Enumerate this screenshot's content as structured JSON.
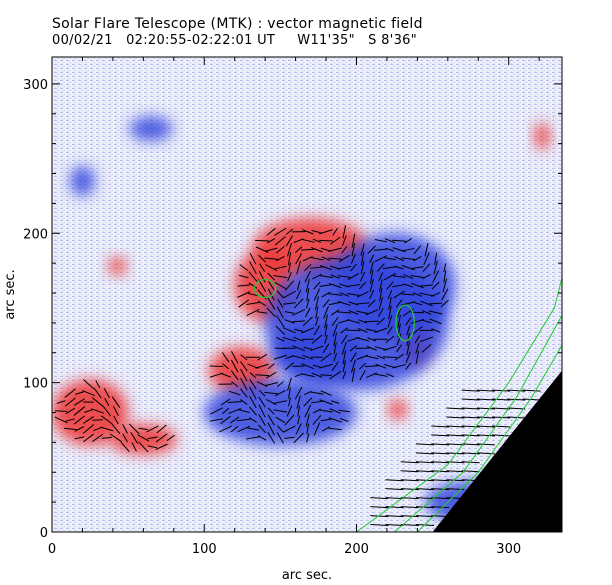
{
  "header": {
    "title": "Solar Flare Telescope (MTK) : vector magnetic field",
    "obs_line": "00/02/21   02:20:55-02:22:01 UT     W11'35\"   S 8'36\""
  },
  "chart_data": {
    "type": "heatmap",
    "title": "Solar Flare Telescope (MTK) : vector magnetic field",
    "subtitle": "00/02/21   02:20:55-02:22:01 UT     W11'35\"   S 8'36\"",
    "xlabel": "arc sec.",
    "ylabel": "arc sec.",
    "xlim": [
      0,
      335
    ],
    "ylim": [
      0,
      318
    ],
    "x_ticks": [
      0,
      100,
      200,
      300
    ],
    "y_ticks": [
      0,
      100,
      200,
      300
    ],
    "colors": {
      "positive_polarity": "#ee3333",
      "negative_polarity": "#3344dd",
      "neutral_noise": "#c8cdf0",
      "contour": "#22cc33",
      "limb_fill": "#000000",
      "vectors": "#000000"
    },
    "regions": [
      {
        "polarity": "positive",
        "center": [
          170,
          190
        ],
        "radii": [
          38,
          20
        ]
      },
      {
        "polarity": "positive",
        "center": [
          140,
          165
        ],
        "radii": [
          20,
          24
        ]
      },
      {
        "polarity": "positive",
        "center": [
          125,
          108
        ],
        "radii": [
          22,
          16
        ]
      },
      {
        "polarity": "positive",
        "center": [
          25,
          80
        ],
        "radii": [
          25,
          22
        ]
      },
      {
        "polarity": "positive",
        "center": [
          60,
          62
        ],
        "radii": [
          22,
          10
        ]
      },
      {
        "polarity": "positive",
        "center": [
          238,
          130
        ],
        "radii": [
          10,
          18
        ]
      },
      {
        "polarity": "positive",
        "center": [
          227,
          82
        ],
        "radii": [
          6,
          7
        ]
      },
      {
        "polarity": "positive",
        "center": [
          43,
          178
        ],
        "radii": [
          6,
          6
        ]
      },
      {
        "polarity": "positive",
        "center": [
          322,
          265
        ],
        "radii": [
          5,
          9
        ]
      },
      {
        "polarity": "negative",
        "center": [
          200,
          140
        ],
        "radii": [
          60,
          45
        ]
      },
      {
        "polarity": "negative",
        "center": [
          150,
          80
        ],
        "radii": [
          50,
          22
        ]
      },
      {
        "polarity": "negative",
        "center": [
          225,
          165
        ],
        "radii": [
          40,
          35
        ]
      },
      {
        "polarity": "negative",
        "center": [
          175,
          120
        ],
        "radii": [
          30,
          20
        ]
      },
      {
        "polarity": "negative",
        "center": [
          65,
          270
        ],
        "radii": [
          14,
          8
        ]
      },
      {
        "polarity": "negative",
        "center": [
          20,
          235
        ],
        "radii": [
          8,
          10
        ]
      },
      {
        "polarity": "negative",
        "center": [
          275,
          20
        ],
        "radii": [
          30,
          14
        ]
      }
    ],
    "contours": [
      {
        "center": [
          140,
          163
        ],
        "radii": [
          7,
          6
        ]
      },
      {
        "center": [
          232,
          140
        ],
        "radii": [
          6,
          12
        ]
      }
    ],
    "limb_curves": [
      [
        [
          200,
          0
        ],
        [
          260,
          45
        ],
        [
          300,
          100
        ],
        [
          330,
          150
        ],
        [
          335,
          170
        ]
      ],
      [
        [
          225,
          0
        ],
        [
          270,
          40
        ],
        [
          305,
          90
        ],
        [
          335,
          145
        ]
      ],
      [
        [
          240,
          0
        ],
        [
          280,
          40
        ],
        [
          315,
          90
        ],
        [
          335,
          125
        ]
      ]
    ],
    "offlimb_boundary": [
      [
        250,
        0
      ],
      [
        335,
        108
      ]
    ]
  }
}
